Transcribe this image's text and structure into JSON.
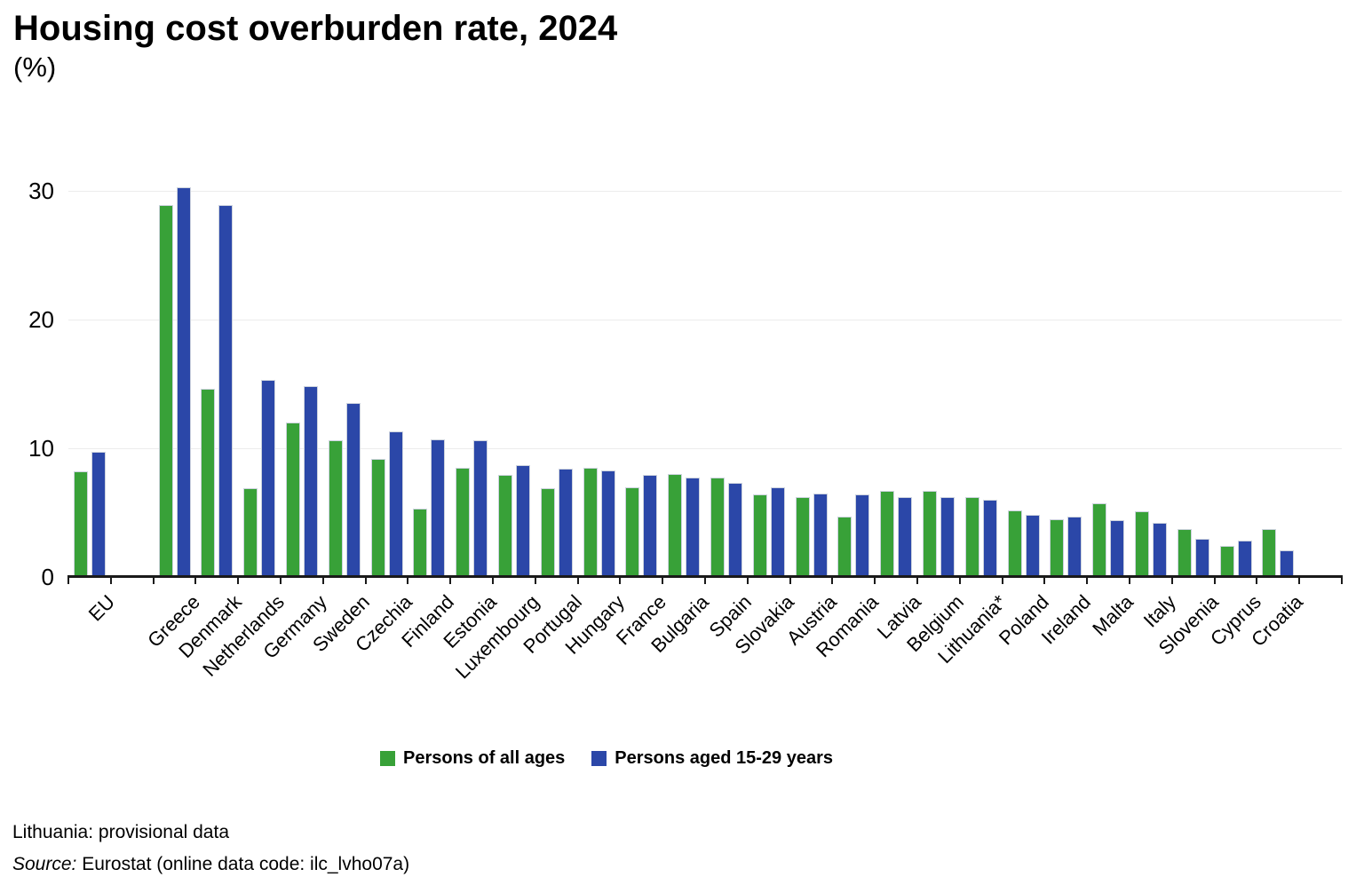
{
  "header": {
    "title": "Housing cost overburden rate, 2024",
    "subtitle": "(%)"
  },
  "footnotes": {
    "note": "Lithuania: provisional data",
    "source_label": "Source:",
    "source_rest": " Eurostat (online data code: ilc_lvho07a)"
  },
  "chart_data": {
    "type": "bar",
    "title": "Housing cost overburden rate, 2024",
    "ylabel": "(%)",
    "xlabel": "",
    "ylim": [
      0,
      30
    ],
    "yticks": [
      0,
      10,
      20,
      30
    ],
    "grid": "horizontal-light",
    "legend_position": "bottom",
    "categories": [
      "EU",
      "Greece",
      "Denmark",
      "Netherlands",
      "Germany",
      "Sweden",
      "Czechia",
      "Finland",
      "Estonia",
      "Luxembourg",
      "Portugal",
      "Hungary",
      "France",
      "Bulgaria",
      "Spain",
      "Slovakia",
      "Austria",
      "Romania",
      "Latvia",
      "Belgium",
      "Lithuania*",
      "Poland",
      "Ireland",
      "Malta",
      "Italy",
      "Slovenia",
      "Cyprus",
      "Croatia"
    ],
    "series": [
      {
        "name": "Persons of all ages",
        "color": "#38A138",
        "values": [
          8.2,
          28.9,
          14.6,
          6.9,
          12.0,
          10.6,
          9.2,
          5.3,
          8.5,
          7.9,
          6.9,
          8.5,
          7.0,
          8.0,
          7.7,
          6.4,
          6.2,
          4.7,
          6.7,
          6.7,
          6.2,
          5.2,
          4.5,
          5.7,
          5.1,
          3.7,
          2.4,
          3.7
        ]
      },
      {
        "name": "Persons aged 15-29 years",
        "color": "#2B47A8",
        "values": [
          9.7,
          30.3,
          28.9,
          15.3,
          14.8,
          13.5,
          11.3,
          10.7,
          10.6,
          8.7,
          8.4,
          8.3,
          7.9,
          7.7,
          7.3,
          7.0,
          6.5,
          6.4,
          6.2,
          6.2,
          6.0,
          4.8,
          4.7,
          4.4,
          4.2,
          3.0,
          2.8,
          2.1
        ]
      }
    ]
  }
}
